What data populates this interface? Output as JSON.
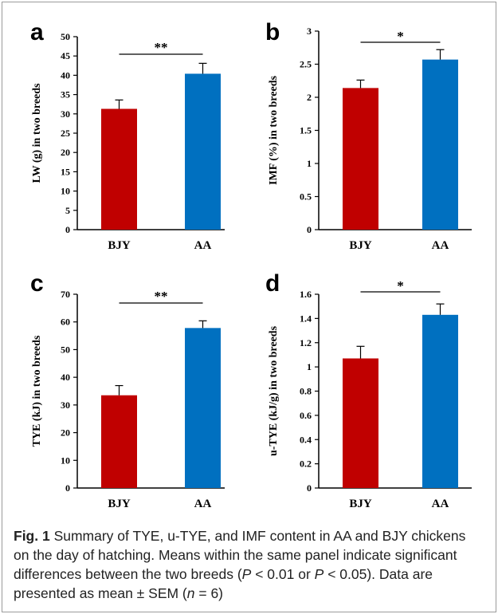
{
  "chart_data": [
    {
      "type": "bar",
      "panel": "a",
      "categories": [
        "BJY",
        "AA"
      ],
      "values": [
        31.3,
        40.4
      ],
      "errors": [
        2.3,
        2.7
      ],
      "colors": [
        "#c00000",
        "#0070c0"
      ],
      "ylabel": "LW (g) in two breeds",
      "ylim": [
        0,
        50
      ],
      "yticks": [
        0,
        5,
        10,
        15,
        20,
        25,
        30,
        35,
        40,
        45,
        50
      ],
      "yticklabels": [
        "0",
        "5",
        "10",
        "15",
        "20",
        "25",
        "30",
        "35",
        "40",
        "45",
        "50"
      ],
      "significance": "**",
      "grid": false
    },
    {
      "type": "bar",
      "panel": "b",
      "categories": [
        "BJY",
        "AA"
      ],
      "values": [
        2.14,
        2.57
      ],
      "errors": [
        0.12,
        0.15
      ],
      "colors": [
        "#c00000",
        "#0070c0"
      ],
      "ylabel": "IMF (%)  in two breeds",
      "ylim": [
        0,
        3
      ],
      "yticks": [
        0,
        0.5,
        1,
        1.5,
        2,
        2.5,
        3
      ],
      "yticklabels": [
        "0",
        "0.5",
        "1",
        "1.5",
        "2",
        "2.5",
        "3"
      ],
      "significance": "*",
      "grid": false
    },
    {
      "type": "bar",
      "panel": "c",
      "categories": [
        "BJY",
        "AA"
      ],
      "values": [
        33.5,
        57.8
      ],
      "errors": [
        3.5,
        2.6
      ],
      "colors": [
        "#c00000",
        "#0070c0"
      ],
      "ylabel": "TYE (kJ) in two breeds",
      "ylim": [
        0,
        70
      ],
      "yticks": [
        0,
        10,
        20,
        30,
        40,
        50,
        60,
        70
      ],
      "yticklabels": [
        "0",
        "10",
        "20",
        "30",
        "40",
        "50",
        "60",
        "70"
      ],
      "significance": "**",
      "grid": false
    },
    {
      "type": "bar",
      "panel": "d",
      "categories": [
        "BJY",
        "AA"
      ],
      "values": [
        1.07,
        1.43
      ],
      "errors": [
        0.1,
        0.09
      ],
      "colors": [
        "#c00000",
        "#0070c0"
      ],
      "ylabel": "u-TYE (kJ/g) in two breeds",
      "ylim": [
        0,
        1.6
      ],
      "yticks": [
        0,
        0.2,
        0.4,
        0.6,
        0.8,
        1.0,
        1.2,
        1.4,
        1.6
      ],
      "yticklabels": [
        "0",
        "0.2",
        "0.4",
        "0.6",
        "0.8",
        "1",
        "1.2",
        "1.4",
        "1.6"
      ],
      "significance": "*",
      "grid": false
    }
  ],
  "caption": {
    "label": "Fig. 1",
    "part1": " Summary of TYE, u-TYE, and IMF content in AA and BJY chickens on the day of hatching. Means within the same panel indicate significant differences between the two breeds (",
    "p1": "P",
    "part2": " < 0.01 or ",
    "p2": "P",
    "part3": " < 0.05). Data are presented as mean ± SEM (",
    "n": "n",
    "part4": " = 6)"
  }
}
